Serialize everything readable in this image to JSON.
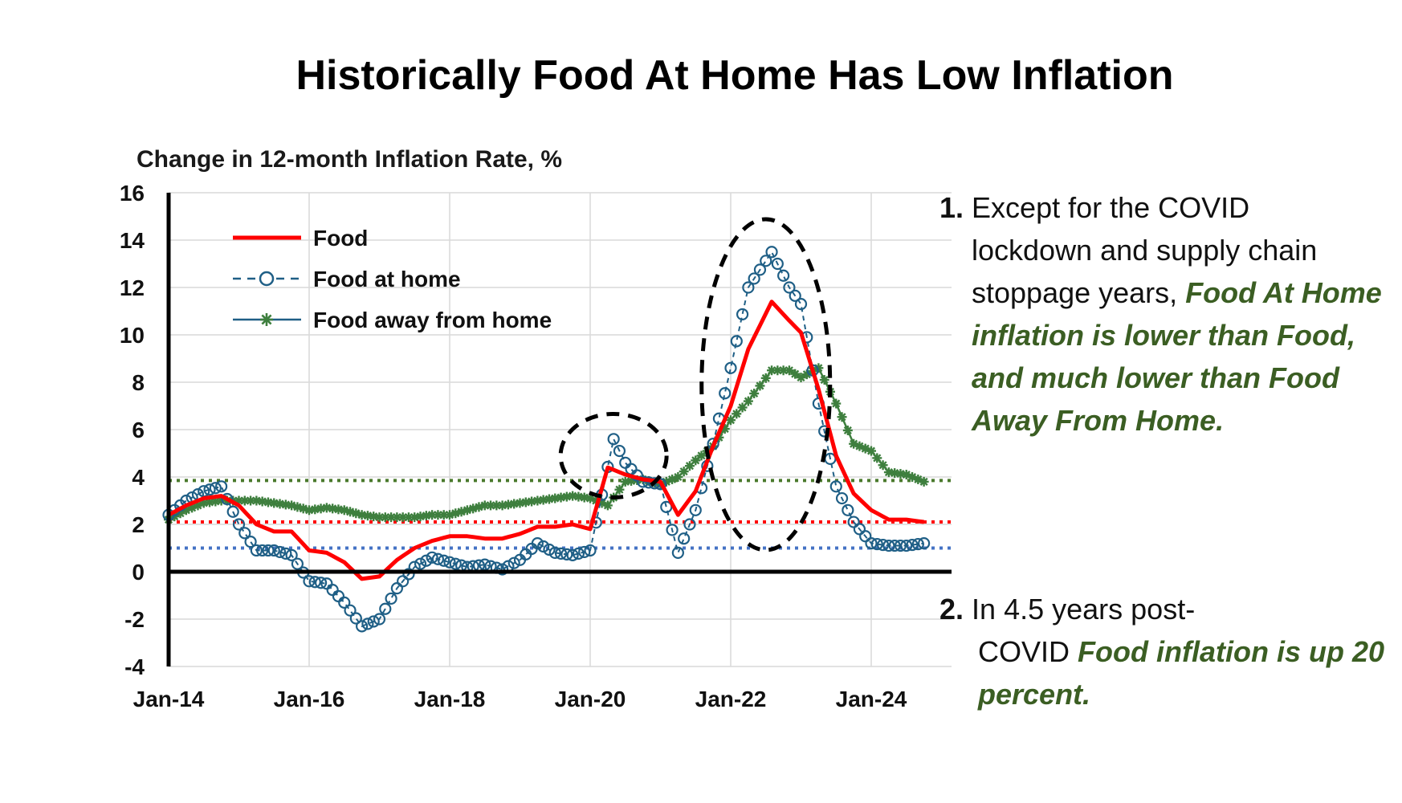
{
  "title": "Historically Food At Home Has Low Inflation",
  "y_axis_title": "Change in 12-month Inflation Rate, %",
  "notes": [
    {
      "number": "1.",
      "plain_first": "Except for the COVID",
      "plain_rest": "lockdown and supply chain stoppage years,",
      "emphasis": "Food At Home inflation is lower than Food, and much lower than Food Away From Home."
    },
    {
      "number": "2.",
      "plain_first": "In 4.5 years post-",
      "plain_rest": "COVID",
      "emphasis": "Food inflation is up 20 percent."
    }
  ],
  "chart_data": {
    "type": "line",
    "title": "Historically Food At Home Has Low Inflation",
    "ylabel": "Change in 12-month Inflation Rate, %",
    "ylim": [
      -4,
      16
    ],
    "yticks": [
      -4,
      -2,
      0,
      2,
      4,
      6,
      8,
      10,
      12,
      14,
      16
    ],
    "xlim": [
      "Jan-14",
      "Nov-24"
    ],
    "xticks": [
      "Jan-14",
      "Jan-16",
      "Jan-18",
      "Jan-20",
      "Jan-22",
      "Jan-24"
    ],
    "legend_position": "top-left",
    "grid": "vertical",
    "colors": {
      "food": "#ff0000",
      "food_at_home": "#1f5f86",
      "food_away": "#3e7f3e",
      "ref_away": "#4a7a2c",
      "ref_food": "#ff0000",
      "ref_home": "#4472c4"
    },
    "reference_lines": [
      {
        "series": "Food away from home",
        "value": 3.85
      },
      {
        "series": "Food",
        "value": 2.1
      },
      {
        "series": "Food at home",
        "value": 1.0
      }
    ],
    "annotations": [
      {
        "shape": "dashed-ellipse",
        "around": "2020 spike",
        "center": [
          "May-20",
          4.9
        ]
      },
      {
        "shape": "dashed-ellipse",
        "around": "2022 spike",
        "center": [
          "Jul-22",
          7.9
        ]
      }
    ],
    "series": [
      {
        "name": "Food",
        "marker": "none",
        "points": [
          [
            "Jan-14",
            2.4
          ],
          [
            "Apr-14",
            2.8
          ],
          [
            "Jul-14",
            3.1
          ],
          [
            "Oct-14",
            3.2
          ],
          [
            "Jan-15",
            2.8
          ],
          [
            "Apr-15",
            2.0
          ],
          [
            "Jul-15",
            1.7
          ],
          [
            "Oct-15",
            1.7
          ],
          [
            "Jan-16",
            0.9
          ],
          [
            "Apr-16",
            0.8
          ],
          [
            "Jul-16",
            0.4
          ],
          [
            "Oct-16",
            -0.3
          ],
          [
            "Jan-17",
            -0.2
          ],
          [
            "Apr-17",
            0.5
          ],
          [
            "Jul-17",
            1.0
          ],
          [
            "Oct-17",
            1.3
          ],
          [
            "Jan-18",
            1.5
          ],
          [
            "Apr-18",
            1.5
          ],
          [
            "Jul-18",
            1.4
          ],
          [
            "Oct-18",
            1.4
          ],
          [
            "Jan-19",
            1.6
          ],
          [
            "Apr-19",
            1.9
          ],
          [
            "Jul-19",
            1.9
          ],
          [
            "Oct-19",
            2.0
          ],
          [
            "Jan-20",
            1.8
          ],
          [
            "Apr-20",
            4.4
          ],
          [
            "Jul-20",
            4.1
          ],
          [
            "Oct-20",
            3.9
          ],
          [
            "Jan-21",
            3.8
          ],
          [
            "Apr-21",
            2.4
          ],
          [
            "Jul-21",
            3.4
          ],
          [
            "Oct-21",
            5.3
          ],
          [
            "Jan-22",
            7.0
          ],
          [
            "Apr-22",
            9.4
          ],
          [
            "Aug-22",
            11.4
          ],
          [
            "Nov-22",
            10.6
          ],
          [
            "Jan-23",
            10.1
          ],
          [
            "Apr-23",
            7.7
          ],
          [
            "Jul-23",
            4.9
          ],
          [
            "Oct-23",
            3.3
          ],
          [
            "Jan-24",
            2.6
          ],
          [
            "Apr-24",
            2.2
          ],
          [
            "Jul-24",
            2.2
          ],
          [
            "Oct-24",
            2.1
          ]
        ]
      },
      {
        "name": "Food at home",
        "marker": "open-circle",
        "points": [
          [
            "Jan-14",
            2.4
          ],
          [
            "Apr-14",
            3.0
          ],
          [
            "Jul-14",
            3.4
          ],
          [
            "Oct-14",
            3.6
          ],
          [
            "Jan-15",
            2.0
          ],
          [
            "Apr-15",
            0.9
          ],
          [
            "Jul-15",
            0.9
          ],
          [
            "Oct-15",
            0.7
          ],
          [
            "Jan-16",
            -0.4
          ],
          [
            "Apr-16",
            -0.5
          ],
          [
            "Jul-16",
            -1.3
          ],
          [
            "Oct-16",
            -2.3
          ],
          [
            "Jan-17",
            -2.0
          ],
          [
            "Apr-17",
            -0.7
          ],
          [
            "Jul-17",
            0.2
          ],
          [
            "Oct-17",
            0.6
          ],
          [
            "Jan-18",
            0.4
          ],
          [
            "Apr-18",
            0.2
          ],
          [
            "Jul-18",
            0.3
          ],
          [
            "Oct-18",
            0.1
          ],
          [
            "Jan-19",
            0.5
          ],
          [
            "Apr-19",
            1.2
          ],
          [
            "Jul-19",
            0.8
          ],
          [
            "Oct-19",
            0.7
          ],
          [
            "Jan-20",
            0.9
          ],
          [
            "May-20",
            5.6
          ],
          [
            "Jul-20",
            4.6
          ],
          [
            "Oct-20",
            3.8
          ],
          [
            "Jan-21",
            3.7
          ],
          [
            "Apr-21",
            0.8
          ],
          [
            "Jul-21",
            2.6
          ],
          [
            "Oct-21",
            5.4
          ],
          [
            "Jan-22",
            8.6
          ],
          [
            "Apr-22",
            12.0
          ],
          [
            "Aug-22",
            13.5
          ],
          [
            "Nov-22",
            12.0
          ],
          [
            "Jan-23",
            11.3
          ],
          [
            "Apr-23",
            7.1
          ],
          [
            "Jul-23",
            3.6
          ],
          [
            "Oct-23",
            2.1
          ],
          [
            "Jan-24",
            1.2
          ],
          [
            "Apr-24",
            1.1
          ],
          [
            "Jul-24",
            1.1
          ],
          [
            "Oct-24",
            1.2
          ]
        ]
      },
      {
        "name": "Food away from home",
        "marker": "asterisk",
        "points": [
          [
            "Jan-14",
            2.2
          ],
          [
            "Apr-14",
            2.6
          ],
          [
            "Jul-14",
            2.9
          ],
          [
            "Oct-14",
            3.0
          ],
          [
            "Jan-15",
            3.0
          ],
          [
            "Apr-15",
            3.0
          ],
          [
            "Jul-15",
            2.9
          ],
          [
            "Oct-15",
            2.8
          ],
          [
            "Jan-16",
            2.6
          ],
          [
            "Apr-16",
            2.7
          ],
          [
            "Jul-16",
            2.6
          ],
          [
            "Oct-16",
            2.4
          ],
          [
            "Jan-17",
            2.3
          ],
          [
            "Apr-17",
            2.3
          ],
          [
            "Jul-17",
            2.3
          ],
          [
            "Oct-17",
            2.4
          ],
          [
            "Jan-18",
            2.4
          ],
          [
            "Apr-18",
            2.6
          ],
          [
            "Jul-18",
            2.8
          ],
          [
            "Oct-18",
            2.8
          ],
          [
            "Jan-19",
            2.9
          ],
          [
            "Apr-19",
            3.0
          ],
          [
            "Jul-19",
            3.1
          ],
          [
            "Oct-19",
            3.2
          ],
          [
            "Jan-20",
            3.1
          ],
          [
            "Apr-20",
            2.8
          ],
          [
            "Jul-20",
            3.8
          ],
          [
            "Oct-20",
            3.9
          ],
          [
            "Jan-21",
            3.7
          ],
          [
            "Apr-21",
            4.0
          ],
          [
            "Jul-21",
            4.7
          ],
          [
            "Oct-21",
            5.3
          ],
          [
            "Jan-22",
            6.4
          ],
          [
            "Apr-22",
            7.2
          ],
          [
            "Aug-22",
            8.5
          ],
          [
            "Nov-22",
            8.5
          ],
          [
            "Jan-23",
            8.2
          ],
          [
            "Apr-23",
            8.6
          ],
          [
            "Jul-23",
            7.1
          ],
          [
            "Oct-23",
            5.4
          ],
          [
            "Jan-24",
            5.1
          ],
          [
            "Apr-24",
            4.2
          ],
          [
            "Jul-24",
            4.1
          ],
          [
            "Oct-24",
            3.8
          ]
        ]
      }
    ]
  }
}
